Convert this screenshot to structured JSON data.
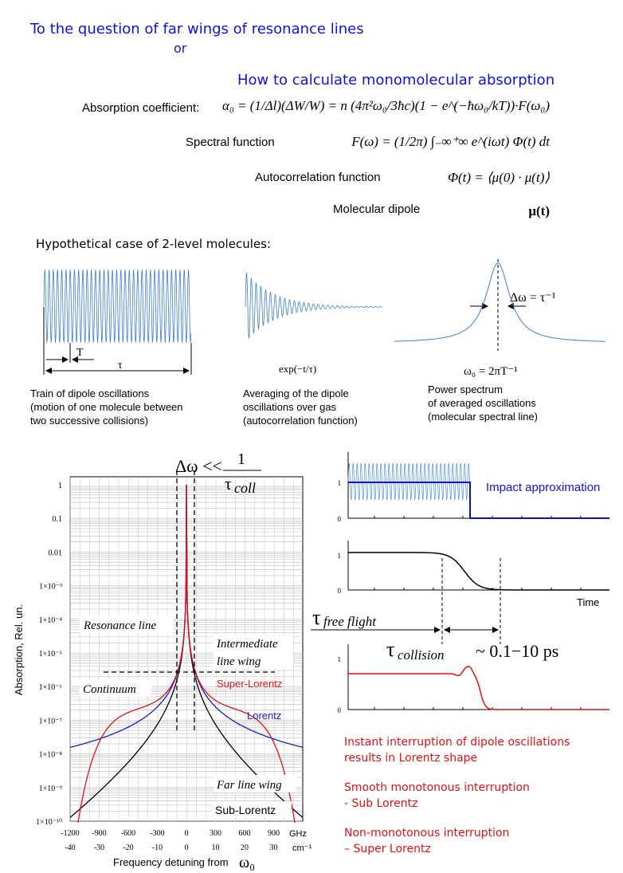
{
  "header": {
    "title": "To the question of far wings of resonance lines",
    "or": "or",
    "subtitle": "How to calculate monomolecular absorption"
  },
  "equations": [
    {
      "label": "Absorption coefficient:",
      "formula": "α₀ = (1/Δl)(ΔW/W) = n (4π²ω₀/3ħc)(1 − e^(−ħω₀/kT))·F(ω₀)"
    },
    {
      "label": "Spectral function",
      "formula": "F(ω) = (1/2π) ∫₋∞⁺∞ e^(iωt) Φ(t) dt"
    },
    {
      "label": "Autocorrelation function",
      "formula": "Φ(t) = ⟨μ(0) · μ(t)⟩"
    },
    {
      "label": "Molecular dipole",
      "formula": "μ(t)"
    }
  ],
  "hypothetical": {
    "heading": "Hypothetical case of 2-level molecules:",
    "panels": [
      {
        "annotations": [
          "T",
          "τ"
        ],
        "caption": [
          "Train of dipole oscillations",
          "(motion of one molecule between",
          "two successive collisions)"
        ]
      },
      {
        "annotations": [
          "exp(−t/τ)"
        ],
        "caption": [
          "Averaging of the dipole",
          "oscillations over gas",
          "(autocorrelation function)"
        ]
      },
      {
        "annotations": [
          "Δω = τ⁻¹",
          "ω₀ = 2πT⁻¹"
        ],
        "caption": [
          "Power spectrum",
          "of averaged oscillations",
          "(molecular spectral line)"
        ]
      }
    ]
  },
  "absorption_plot": {
    "ylabel": "Absorption,  Rel. un.",
    "yticks": [
      "1",
      "0.1",
      "0.01",
      "1×10⁻³",
      "1×10⁻⁴",
      "1×10⁻⁵",
      "1×10⁻⁶",
      "1×10⁻⁷",
      "1×10⁻⁸",
      "1×10⁻⁹",
      "1×10⁻¹⁰"
    ],
    "xticks_ghz": [
      "-1200",
      "-900",
      "-600",
      "-300",
      "0",
      "300",
      "600",
      "900"
    ],
    "xticks_cm": [
      "-40",
      "-30",
      "-20",
      "-10",
      "0",
      "10",
      "20",
      "30"
    ],
    "unit_ghz": "GHz",
    "unit_cm": "cm⁻¹",
    "xlabel": "Frequency detuning from",
    "xlabel_symbol": "ω₀",
    "top_formula": {
      "lhs": "Δω <<",
      "num": "1",
      "den": "τ",
      "den_sub": "coll"
    },
    "annotations": {
      "resonance": "Resonance line",
      "intermediate": [
        "Intermediate",
        "line wing"
      ],
      "continuum": "Continuum",
      "super": "Super-Lorentz",
      "lorentz": "Lorentz",
      "far": "Far line wing",
      "sub": "Sub-Lorentz"
    }
  },
  "time_panels": {
    "impact": "Impact approximation",
    "time": "Time",
    "ticks": [
      [
        "1",
        "0"
      ],
      [
        "1",
        "0"
      ],
      [
        "1",
        "0"
      ]
    ],
    "free_flight": {
      "symbol": "τ",
      "sub": "free  flight"
    },
    "collision": {
      "symbol": "τ",
      "sub": "collision",
      "rest": "~ 0.1−10  ps"
    }
  },
  "notes": [
    [
      "Instant interruption of dipole oscillations",
      "results in Lorentz shape"
    ],
    [
      "Smooth monotonous interruption",
      "   - Sub Lorentz"
    ],
    [
      "Non-monotonous interruption",
      "  – Super Lorentz"
    ]
  ]
}
